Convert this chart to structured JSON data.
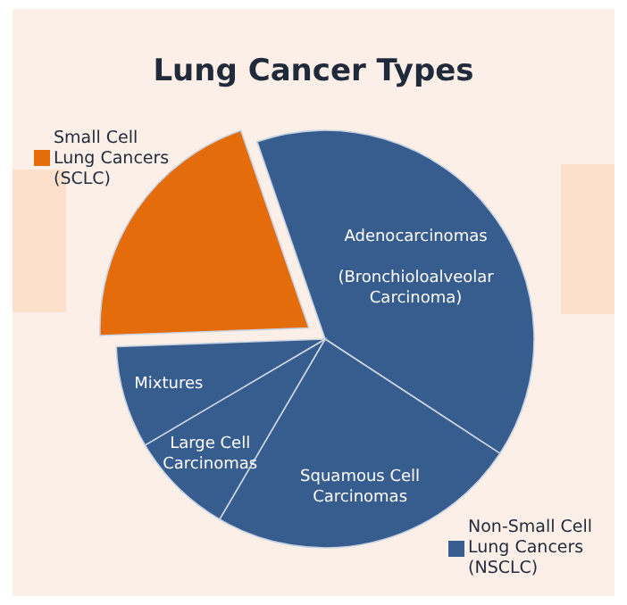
{
  "chart_data": {
    "type": "pie",
    "title": "Lung Cancer Types",
    "categories": [
      "Adenocarcinomas\n\n(Bronchioloalveolar\nCarcinoma)",
      "Squamous Cell\nCarcinomas",
      "Large Cell\nCarcinomas",
      "Mixtures",
      "Small Cell\nLung Cancers\n(SCLC)"
    ],
    "values": [
      39.5,
      24.2,
      8.1,
      7.9,
      20.3
    ],
    "colors": [
      "#375d8f",
      "#375d8f",
      "#375d8f",
      "#375d8f",
      "#e46c0a"
    ],
    "annotations": [
      "Non-Small Cell\nLung Cancers\n(NSCLC)"
    ]
  }
}
